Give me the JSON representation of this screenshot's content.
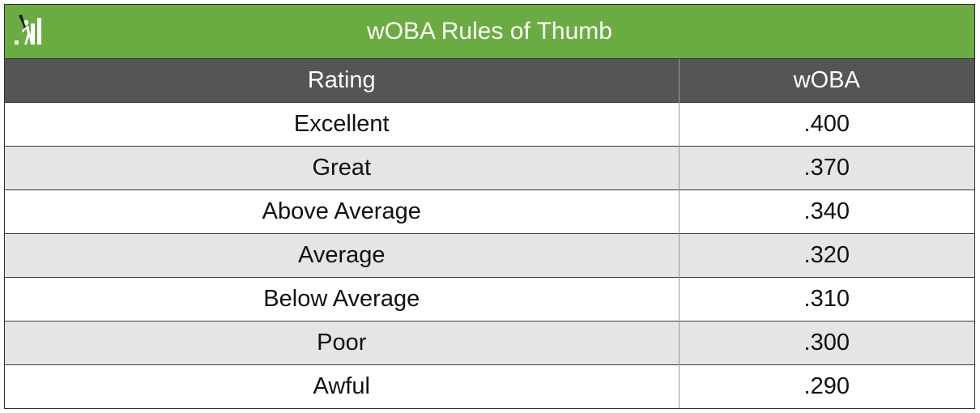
{
  "title": "wOBA Rules of Thumb",
  "logo_icon": "batter-bars-logo-icon",
  "colors": {
    "title_bar": "#6aac41",
    "header_bg": "#555555",
    "row_alt": "#e5e5e5"
  },
  "table": {
    "headers": [
      "Rating",
      "wOBA"
    ],
    "rows": [
      {
        "rating": "Excellent",
        "woba": ".400"
      },
      {
        "rating": "Great",
        "woba": ".370"
      },
      {
        "rating": "Above Average",
        "woba": ".340"
      },
      {
        "rating": "Average",
        "woba": ".320"
      },
      {
        "rating": "Below Average",
        "woba": ".310"
      },
      {
        "rating": "Poor",
        "woba": ".300"
      },
      {
        "rating": "Awful",
        "woba": ".290"
      }
    ]
  }
}
